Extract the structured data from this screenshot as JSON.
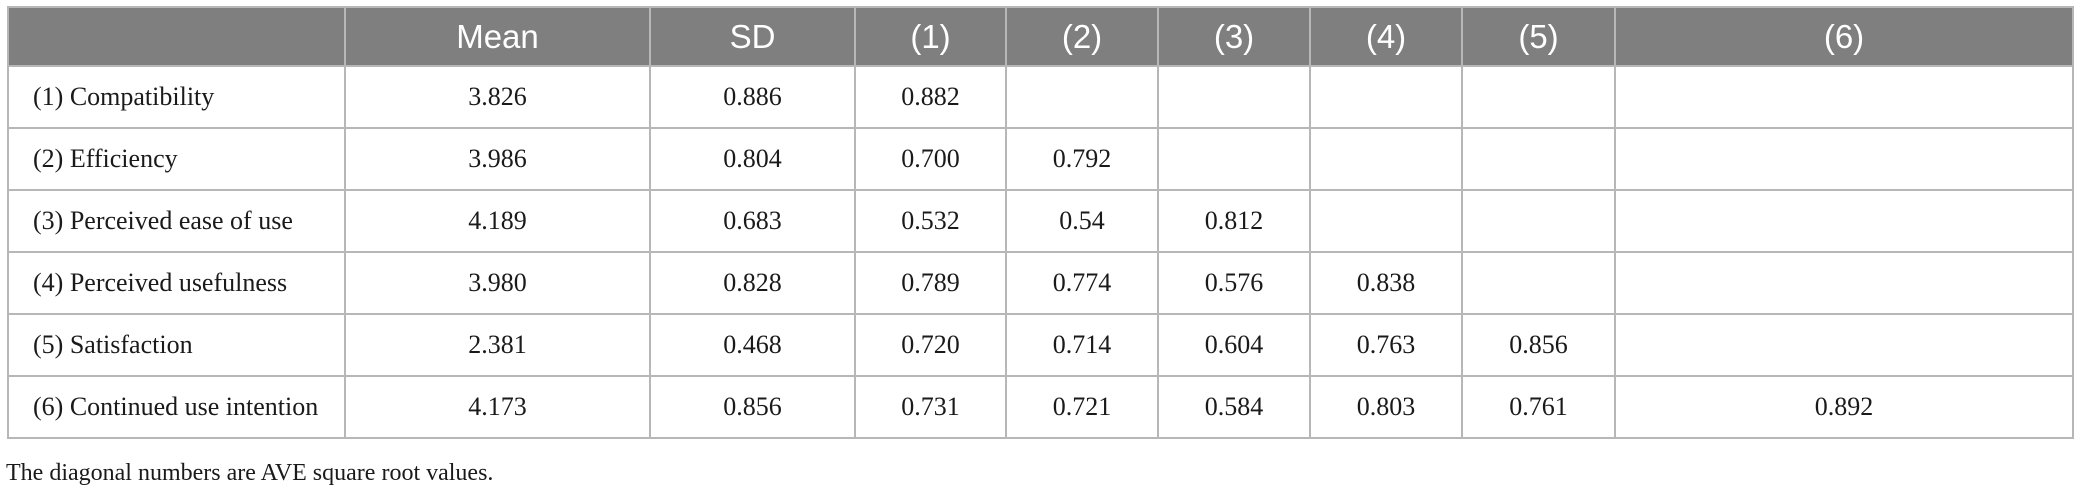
{
  "table": {
    "columns": [
      "",
      "Mean",
      "SD",
      "(1)",
      "(2)",
      "(3)",
      "(4)",
      "(5)",
      "(6)"
    ],
    "rows": [
      {
        "label": "(1) Compatibility",
        "cells": [
          "3.826",
          "0.886",
          "0.882",
          "",
          "",
          "",
          "",
          ""
        ]
      },
      {
        "label": "(2) Efficiency",
        "cells": [
          "3.986",
          "0.804",
          "0.700",
          "0.792",
          "",
          "",
          "",
          ""
        ]
      },
      {
        "label": "(3) Perceived ease of use",
        "cells": [
          "4.189",
          "0.683",
          "0.532",
          "0.54",
          "0.812",
          "",
          "",
          ""
        ]
      },
      {
        "label": "(4) Perceived usefulness",
        "cells": [
          "3.980",
          "0.828",
          "0.789",
          "0.774",
          "0.576",
          "0.838",
          "",
          ""
        ]
      },
      {
        "label": "(5) Satisfaction",
        "cells": [
          "2.381",
          "0.468",
          "0.720",
          "0.714",
          "0.604",
          "0.763",
          "0.856",
          ""
        ]
      },
      {
        "label": "(6) Continued use intention",
        "cells": [
          "4.173",
          "0.856",
          "0.731",
          "0.721",
          "0.584",
          "0.803",
          "0.761",
          "0.892"
        ]
      }
    ]
  },
  "footnote": "The diagonal numbers are AVE square root values."
}
